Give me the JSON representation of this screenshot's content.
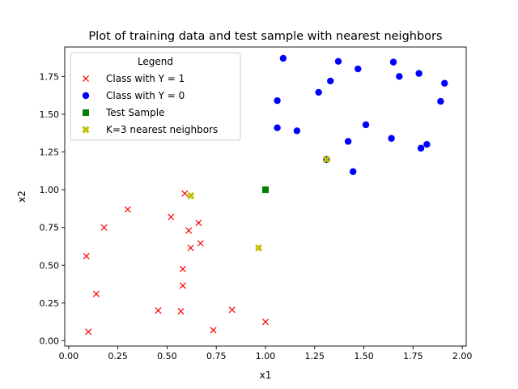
{
  "chart_data": {
    "type": "scatter",
    "title": "Plot of training data and test sample with nearest neighbors",
    "xlabel": "x1",
    "ylabel": "x2",
    "xlim": [
      -0.02,
      2.02
    ],
    "ylim": [
      -0.035,
      1.945
    ],
    "xticks": [
      0.0,
      0.25,
      0.5,
      0.75,
      1.0,
      1.25,
      1.5,
      1.75,
      2.0
    ],
    "xtick_labels": [
      "0.00",
      "0.25",
      "0.50",
      "0.75",
      "1.00",
      "1.25",
      "1.50",
      "1.75",
      "2.00"
    ],
    "yticks": [
      0.0,
      0.25,
      0.5,
      0.75,
      1.0,
      1.25,
      1.5,
      1.75
    ],
    "ytick_labels": [
      "0.00",
      "0.25",
      "0.50",
      "0.75",
      "1.00",
      "1.25",
      "1.50",
      "1.75"
    ],
    "grid": false,
    "legend": {
      "title": "Legend",
      "placement": "upper-left"
    },
    "series": [
      {
        "name": "Class with Y = 1",
        "marker": "x",
        "color": "#ff0000",
        "points": [
          [
            0.59,
            0.975
          ],
          [
            0.3,
            0.87
          ],
          [
            0.52,
            0.82
          ],
          [
            0.66,
            0.78
          ],
          [
            0.18,
            0.75
          ],
          [
            0.61,
            0.73
          ],
          [
            0.67,
            0.645
          ],
          [
            0.62,
            0.615
          ],
          [
            0.09,
            0.56
          ],
          [
            0.58,
            0.475
          ],
          [
            0.58,
            0.365
          ],
          [
            0.14,
            0.31
          ],
          [
            0.455,
            0.2
          ],
          [
            0.57,
            0.195
          ],
          [
            0.83,
            0.205
          ],
          [
            1.0,
            0.125
          ],
          [
            0.735,
            0.07
          ],
          [
            0.1,
            0.06
          ]
        ]
      },
      {
        "name": "Class with Y = 0",
        "marker": "o",
        "color": "#0000ff",
        "points": [
          [
            1.09,
            1.87
          ],
          [
            1.37,
            1.85
          ],
          [
            1.65,
            1.845
          ],
          [
            1.47,
            1.8
          ],
          [
            1.78,
            1.77
          ],
          [
            1.68,
            1.75
          ],
          [
            1.33,
            1.72
          ],
          [
            1.91,
            1.705
          ],
          [
            1.27,
            1.645
          ],
          [
            1.06,
            1.59
          ],
          [
            1.89,
            1.585
          ],
          [
            1.51,
            1.43
          ],
          [
            1.06,
            1.41
          ],
          [
            1.16,
            1.39
          ],
          [
            1.64,
            1.34
          ],
          [
            1.42,
            1.32
          ],
          [
            1.82,
            1.3
          ],
          [
            1.79,
            1.275
          ],
          [
            1.31,
            1.2
          ],
          [
            1.445,
            1.12
          ]
        ]
      },
      {
        "name": "Test Sample",
        "marker": "square",
        "color": "#008000",
        "points": [
          [
            1.0,
            1.0
          ]
        ]
      },
      {
        "name": "K=3 nearest neighbors",
        "marker": "X",
        "color": "#bfbf00",
        "points": [
          [
            0.62,
            0.96
          ],
          [
            0.965,
            0.615
          ],
          [
            1.31,
            1.2
          ]
        ]
      }
    ]
  }
}
